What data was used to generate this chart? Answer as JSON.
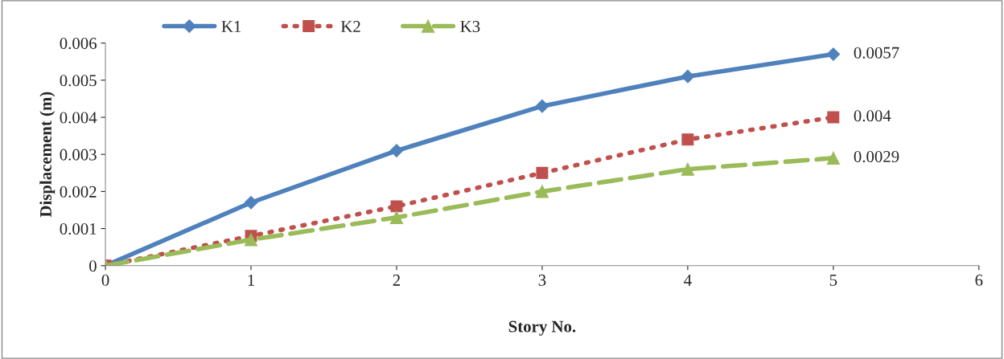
{
  "chart_data": {
    "type": "line",
    "xlabel": "Story No.",
    "ylabel": "Displacement (m)",
    "x": [
      0,
      1,
      2,
      3,
      4,
      5
    ],
    "series": [
      {
        "name": "K1",
        "color": "#4f81bd",
        "marker": "diamond",
        "line_style": "solid",
        "values": [
          0,
          0.0017,
          0.0031,
          0.0043,
          0.0051,
          0.0057
        ],
        "value_labels": [
          null,
          null,
          null,
          null,
          null,
          "0.0057"
        ]
      },
      {
        "name": "K2",
        "color": "#c0504d",
        "marker": "square",
        "line_style": "dotted",
        "values": [
          0,
          0.0008,
          0.0016,
          0.0025,
          0.0034,
          0.004
        ],
        "value_labels": [
          null,
          null,
          null,
          null,
          null,
          "0.004"
        ]
      },
      {
        "name": "K3",
        "color": "#9bbb59",
        "marker": "triangle",
        "line_style": "dashed",
        "values": [
          0,
          0.0007,
          0.0013,
          0.002,
          0.0026,
          0.0029
        ],
        "value_labels": [
          null,
          null,
          null,
          null,
          null,
          "0.0029"
        ]
      }
    ],
    "xlim": [
      0,
      6
    ],
    "xticks": [
      0,
      1,
      2,
      3,
      4,
      5,
      6
    ],
    "ylim": [
      0,
      0.006
    ],
    "yticks": [
      0,
      0.001,
      0.002,
      0.003,
      0.004,
      0.005,
      0.006
    ],
    "grid": false,
    "legend": "top left"
  }
}
